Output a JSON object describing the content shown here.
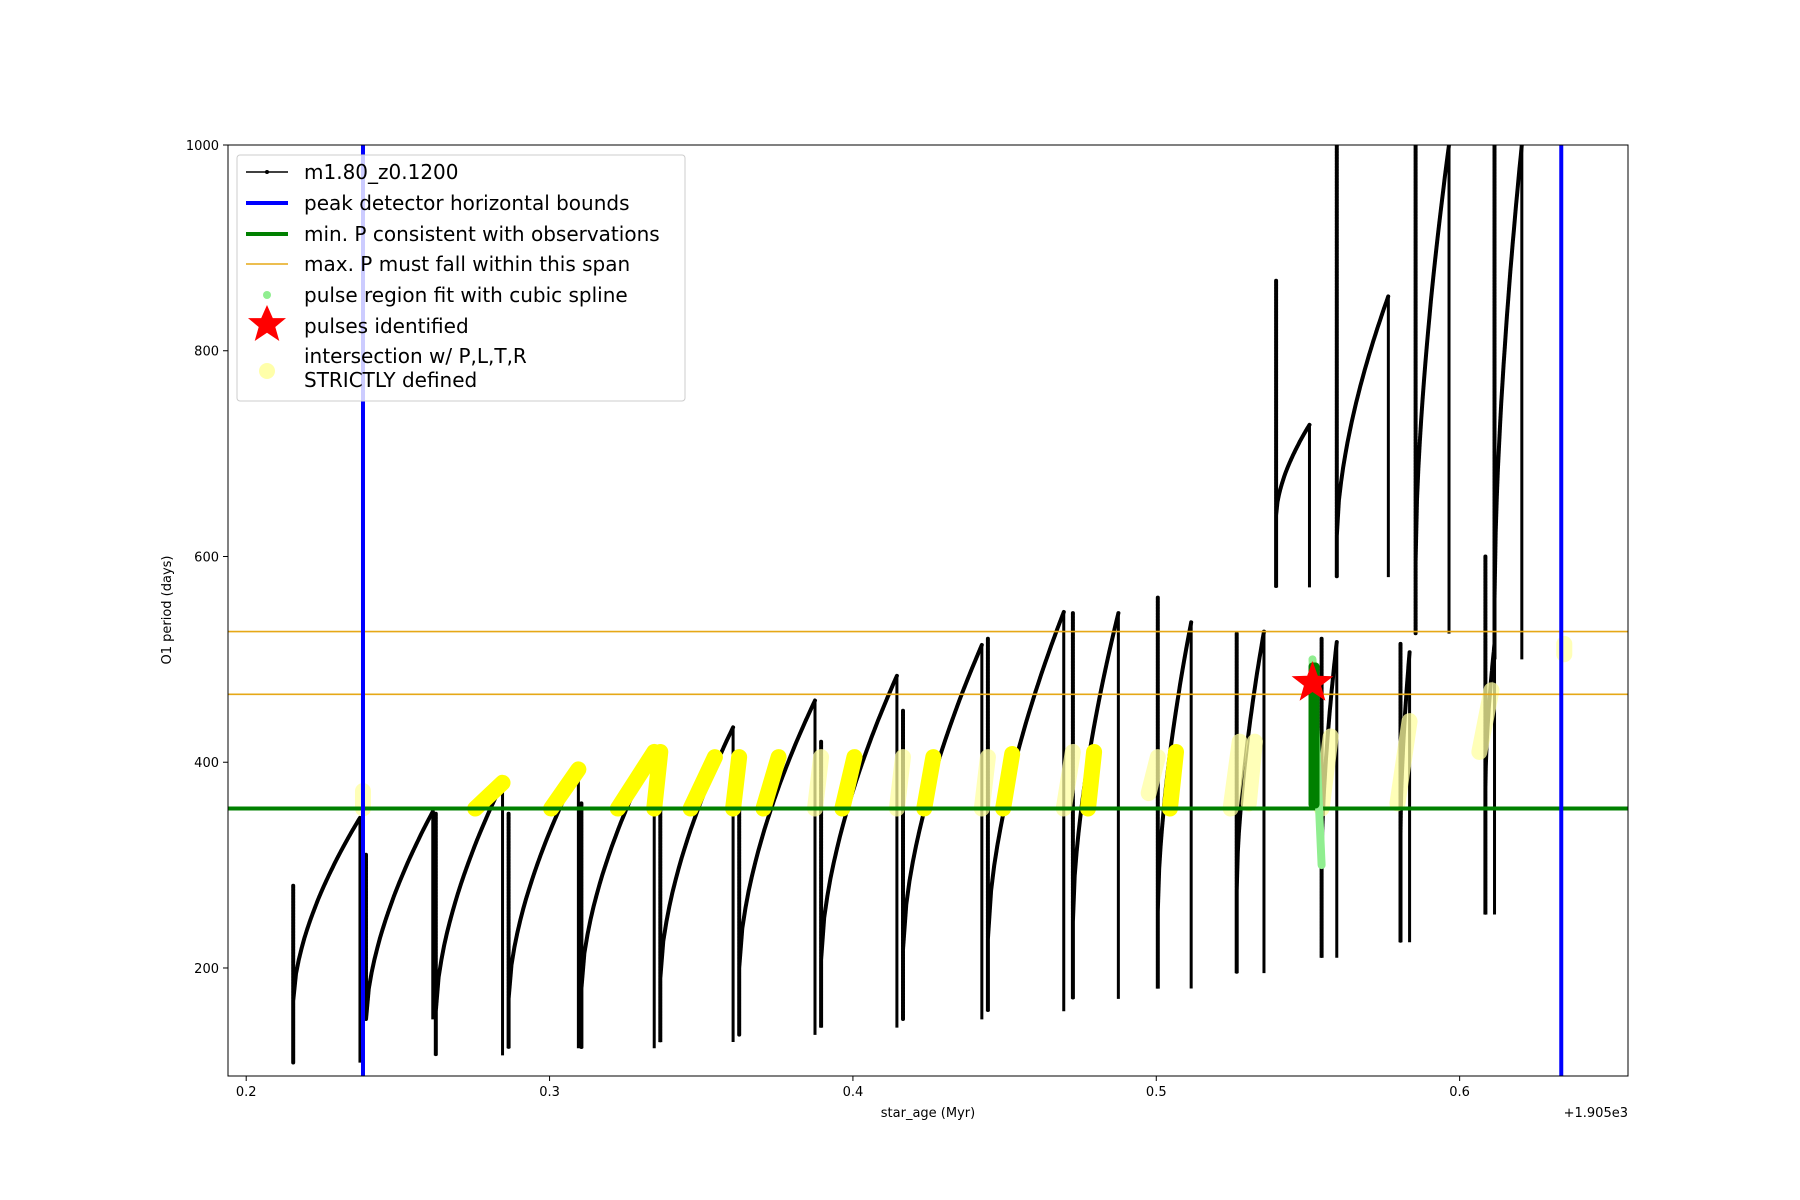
{
  "chart_data": {
    "type": "scatter",
    "title": "",
    "xlabel": "star_age (Myr)",
    "ylabel": "O1 period (days)",
    "x_offset_label": "+1.905e3",
    "xlim": [
      0.194,
      0.6555
    ],
    "ylim": [
      95,
      1000
    ],
    "x_ticks": [
      0.2,
      0.3,
      0.4,
      0.5,
      0.6
    ],
    "x_tick_labels": [
      "0.2",
      "0.3",
      "0.4",
      "0.5",
      "0.6"
    ],
    "y_ticks": [
      200,
      400,
      600,
      800,
      1000
    ],
    "y_tick_labels": [
      "200",
      "400",
      "600",
      "800",
      "1000"
    ],
    "grid": false,
    "legend": {
      "placement": "upper-left",
      "entries": [
        {
          "label": "m1.80_z0.1200",
          "color": "#000000",
          "marker": "line-dot"
        },
        {
          "label": "peak detector horizontal bounds",
          "color": "#0000ff",
          "marker": "line"
        },
        {
          "label": "min. P consistent with observations",
          "color": "#008000",
          "marker": "line"
        },
        {
          "label": "max. P must fall within this span",
          "color": "#ffa500",
          "marker": "thin-line"
        },
        {
          "label": "pulse region fit with cubic spline",
          "color": "#90ee90",
          "marker": "dot"
        },
        {
          "label": "pulses identified",
          "color": "#ff0000",
          "marker": "star"
        },
        {
          "label": "intersection w/ P,L,T,R\nSTRICTLY defined",
          "color": "#ffffaa",
          "marker": "dot"
        }
      ]
    },
    "colors": {
      "track": "#000000",
      "bounds": "#0000ff",
      "minP": "#008000",
      "maxP": "#e6a817",
      "spline": "#90ee90",
      "pulse": "#ff0000",
      "intersection_bright": "#ffff00",
      "intersection_pale": "#ffffa0"
    },
    "vertical_bounds": [
      0.2385,
      0.6335
    ],
    "min_p": 355,
    "max_p_span": [
      466,
      527
    ],
    "pulses_identified": [
      {
        "x": 0.5515,
        "y": 477
      }
    ],
    "spline_region": {
      "x": [
        0.5515,
        0.5545
      ],
      "y": [
        300,
        500
      ]
    },
    "main_cycles": [
      {
        "start": 0.2155,
        "y0": 168,
        "end": 0.2375,
        "y1": 346,
        "dip": 108,
        "spike": 280
      },
      {
        "start": 0.2395,
        "y0": 150,
        "end": 0.2615,
        "y1": 352,
        "dip": 150,
        "spike": 310
      },
      {
        "start": 0.2625,
        "y0": 158,
        "end": 0.2845,
        "y1": 380,
        "dip": 115,
        "spike": 350
      },
      {
        "start": 0.2865,
        "y0": 170,
        "end": 0.3095,
        "y1": 393,
        "dip": 122,
        "spike": 350
      },
      {
        "start": 0.3105,
        "y0": 180,
        "end": 0.3345,
        "y1": 413,
        "dip": 122,
        "spike": 360
      },
      {
        "start": 0.3365,
        "y0": 190,
        "end": 0.3605,
        "y1": 434,
        "dip": 128,
        "spike": 380
      },
      {
        "start": 0.3625,
        "y0": 200,
        "end": 0.3875,
        "y1": 460,
        "dip": 135,
        "spike": 400
      },
      {
        "start": 0.3895,
        "y0": 208,
        "end": 0.4145,
        "y1": 484,
        "dip": 142,
        "spike": 420
      },
      {
        "start": 0.4165,
        "y0": 218,
        "end": 0.4425,
        "y1": 514,
        "dip": 150,
        "spike": 450
      },
      {
        "start": 0.4445,
        "y0": 228,
        "end": 0.4695,
        "y1": 546,
        "dip": 158,
        "spike": 520
      },
      {
        "start": 0.4725,
        "y0": 245,
        "end": 0.4875,
        "y1": 545,
        "dip": 170,
        "spike": 545
      },
      {
        "start": 0.5005,
        "y0": 255,
        "end": 0.5115,
        "y1": 536,
        "dip": 180,
        "spike": 560
      },
      {
        "start": 0.5265,
        "y0": 275,
        "end": 0.5355,
        "y1": 527,
        "dip": 195,
        "spike": 525
      },
      {
        "start": 0.5545,
        "y0": 300,
        "end": 0.5595,
        "y1": 517,
        "dip": 210,
        "spike": 520
      },
      {
        "start": 0.5805,
        "y0": 330,
        "end": 0.5835,
        "y1": 507,
        "dip": 225,
        "spike": 515
      },
      {
        "start": 0.6085,
        "y0": 375,
        "end": 0.6115,
        "y1": 515,
        "dip": 252,
        "spike": 600
      }
    ],
    "upper_cycles": [
      {
        "start": 0.5395,
        "y0": 640,
        "end": 0.5505,
        "y1": 728,
        "dip": 570,
        "spike": 868
      },
      {
        "start": 0.5595,
        "y0": 620,
        "end": 0.5765,
        "y1": 853,
        "dip": 580,
        "spike": 1000
      },
      {
        "start": 0.5855,
        "y0": 595,
        "end": 0.5965,
        "y1": 1000,
        "dip": 525,
        "spike": 1000
      },
      {
        "start": 0.6115,
        "y0": 558,
        "end": 0.6205,
        "y1": 1000,
        "dip": 500,
        "spike": 1000
      }
    ],
    "intersection_groups": [
      {
        "x0": 0.2385,
        "x1": 0.2385,
        "y0": 355,
        "y1": 372,
        "tone": "pale"
      },
      {
        "x0": 0.2755,
        "x1": 0.2845,
        "y0": 355,
        "y1": 380,
        "tone": "bright"
      },
      {
        "x0": 0.3005,
        "x1": 0.3095,
        "y0": 355,
        "y1": 393,
        "tone": "bright"
      },
      {
        "x0": 0.3225,
        "x1": 0.3345,
        "y0": 355,
        "y1": 410,
        "tone": "bright"
      },
      {
        "x0": 0.3345,
        "x1": 0.3365,
        "y0": 355,
        "y1": 410,
        "tone": "bright"
      },
      {
        "x0": 0.3465,
        "x1": 0.3545,
        "y0": 355,
        "y1": 405,
        "tone": "bright"
      },
      {
        "x0": 0.3605,
        "x1": 0.3625,
        "y0": 355,
        "y1": 405,
        "tone": "bright"
      },
      {
        "x0": 0.3705,
        "x1": 0.3755,
        "y0": 355,
        "y1": 405,
        "tone": "bright"
      },
      {
        "x0": 0.3875,
        "x1": 0.3895,
        "y0": 355,
        "y1": 405,
        "tone": "pale"
      },
      {
        "x0": 0.3965,
        "x1": 0.4005,
        "y0": 355,
        "y1": 405,
        "tone": "bright"
      },
      {
        "x0": 0.4145,
        "x1": 0.4165,
        "y0": 355,
        "y1": 405,
        "tone": "pale"
      },
      {
        "x0": 0.4235,
        "x1": 0.4265,
        "y0": 355,
        "y1": 405,
        "tone": "bright"
      },
      {
        "x0": 0.4425,
        "x1": 0.4445,
        "y0": 355,
        "y1": 405,
        "tone": "pale"
      },
      {
        "x0": 0.4495,
        "x1": 0.4525,
        "y0": 355,
        "y1": 408,
        "tone": "bright"
      },
      {
        "x0": 0.4695,
        "x1": 0.4725,
        "y0": 355,
        "y1": 410,
        "tone": "pale"
      },
      {
        "x0": 0.4775,
        "x1": 0.4795,
        "y0": 355,
        "y1": 410,
        "tone": "bright"
      },
      {
        "x0": 0.4975,
        "x1": 0.5005,
        "y0": 370,
        "y1": 405,
        "tone": "pale"
      },
      {
        "x0": 0.5045,
        "x1": 0.5065,
        "y0": 355,
        "y1": 410,
        "tone": "bright"
      },
      {
        "x0": 0.5245,
        "x1": 0.5275,
        "y0": 355,
        "y1": 420,
        "tone": "pale"
      },
      {
        "x0": 0.5305,
        "x1": 0.5325,
        "y0": 360,
        "y1": 420,
        "tone": "pale"
      },
      {
        "x0": 0.5545,
        "x1": 0.5575,
        "y0": 355,
        "y1": 425,
        "tone": "pale"
      },
      {
        "x0": 0.5795,
        "x1": 0.5835,
        "y0": 360,
        "y1": 440,
        "tone": "pale"
      },
      {
        "x0": 0.6065,
        "x1": 0.6105,
        "y0": 410,
        "y1": 470,
        "tone": "pale"
      },
      {
        "x0": 0.6345,
        "x1": 0.6345,
        "y0": 505,
        "y1": 515,
        "tone": "pale"
      }
    ],
    "green_band": {
      "x0": 0.5515,
      "x1": 0.5525,
      "y0": 355,
      "y1": 497
    }
  }
}
